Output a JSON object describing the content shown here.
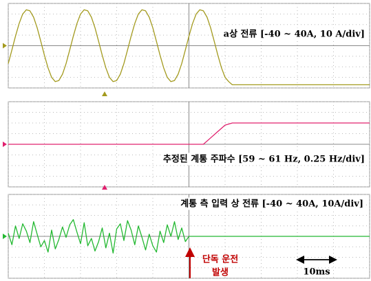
{
  "chart_data": [
    {
      "type": "line",
      "title": "a상 전류 [-40 ~ 40A, 10 A/div]",
      "color": "#a39a1e",
      "x": [
        0,
        1,
        2,
        3,
        4,
        5,
        6,
        7,
        8,
        9,
        10,
        11,
        12,
        13,
        14,
        15,
        16,
        17,
        18,
        19,
        20,
        21,
        22,
        23,
        24,
        25,
        26,
        27,
        28,
        29,
        30,
        31,
        32,
        33,
        34,
        35,
        36,
        37,
        38,
        39,
        40,
        41,
        42,
        43,
        44,
        45,
        46,
        47,
        48,
        49,
        50,
        51,
        52,
        53,
        54,
        55,
        56,
        57,
        58,
        59,
        60,
        61,
        62,
        100
      ],
      "values": [
        -17,
        -4,
        9,
        21,
        30,
        34,
        33,
        27,
        17,
        4,
        -9,
        -21,
        -30,
        -34,
        -33,
        -27,
        -17,
        -4,
        9,
        21,
        30,
        34,
        33,
        27,
        17,
        4,
        -9,
        -21,
        -30,
        -34,
        -33,
        -27,
        -17,
        -4,
        9,
        21,
        30,
        34,
        33,
        27,
        17,
        4,
        -9,
        -21,
        -30,
        -34,
        -33,
        -27,
        -17,
        -4,
        9,
        21,
        30,
        34,
        33,
        27,
        17,
        4,
        -9,
        -21,
        -30,
        -34,
        -37,
        -37
      ],
      "xlim": [
        0,
        100
      ],
      "ylim": [
        -40,
        40
      ],
      "xticks": [
        0,
        10,
        20,
        30,
        40,
        50,
        60,
        70,
        80,
        90,
        100
      ],
      "yticks": [
        -40,
        -30,
        -20,
        -10,
        0,
        10,
        20,
        30,
        40
      ],
      "grid": true
    },
    {
      "type": "line",
      "title": "추정된 계통 주파수 [59 ~ 61 Hz, 0.25 Hz/div]",
      "color": "#e0206e",
      "x": [
        0,
        54,
        56,
        58,
        60,
        62,
        100
      ],
      "values": [
        60,
        60,
        60.15,
        60.3,
        60.45,
        60.5,
        60.5
      ],
      "xlim": [
        0,
        100
      ],
      "ylim": [
        59,
        61
      ],
      "xticks": [
        0,
        10,
        20,
        30,
        40,
        50,
        60,
        70,
        80,
        90,
        100
      ],
      "yticks": [
        59,
        59.25,
        59.5,
        59.75,
        60,
        60.25,
        60.5,
        60.75,
        61
      ],
      "grid": true
    },
    {
      "type": "line",
      "title": "계통 측 입력 상 전류 [-40 ~ 40A, 10A/div]",
      "color": "#22b830",
      "x": [
        0,
        1,
        2,
        3,
        4,
        5,
        6,
        7,
        8,
        9,
        10,
        11,
        12,
        13,
        14,
        15,
        16,
        17,
        18,
        19,
        20,
        21,
        22,
        23,
        24,
        25,
        26,
        27,
        28,
        29,
        30,
        31,
        32,
        33,
        34,
        35,
        36,
        37,
        38,
        39,
        40,
        41,
        42,
        43,
        44,
        45,
        46,
        47,
        48,
        49,
        50,
        100
      ],
      "values": [
        3,
        -8,
        10,
        -2,
        12,
        5,
        -6,
        14,
        2,
        -10,
        -4,
        -15,
        6,
        -12,
        -3,
        9,
        -1,
        11,
        16,
        4,
        -7,
        13,
        -9,
        -2,
        -14,
        -5,
        8,
        -11,
        3,
        -16,
        7,
        12,
        -4,
        15,
        6,
        -8,
        10,
        -1,
        -13,
        2,
        -9,
        -15,
        5,
        -6,
        11,
        0,
        14,
        -3,
        8,
        -5,
        0,
        0
      ],
      "xlim": [
        0,
        100
      ],
      "ylim": [
        -40,
        40
      ],
      "xticks": [
        0,
        10,
        20,
        30,
        40,
        50,
        60,
        70,
        80,
        90,
        100
      ],
      "yticks": [
        -40,
        -30,
        -20,
        -10,
        0,
        10,
        20,
        30,
        40
      ],
      "grid": true,
      "annotations": [
        "단독 운전",
        "발생",
        "10ms"
      ]
    }
  ]
}
